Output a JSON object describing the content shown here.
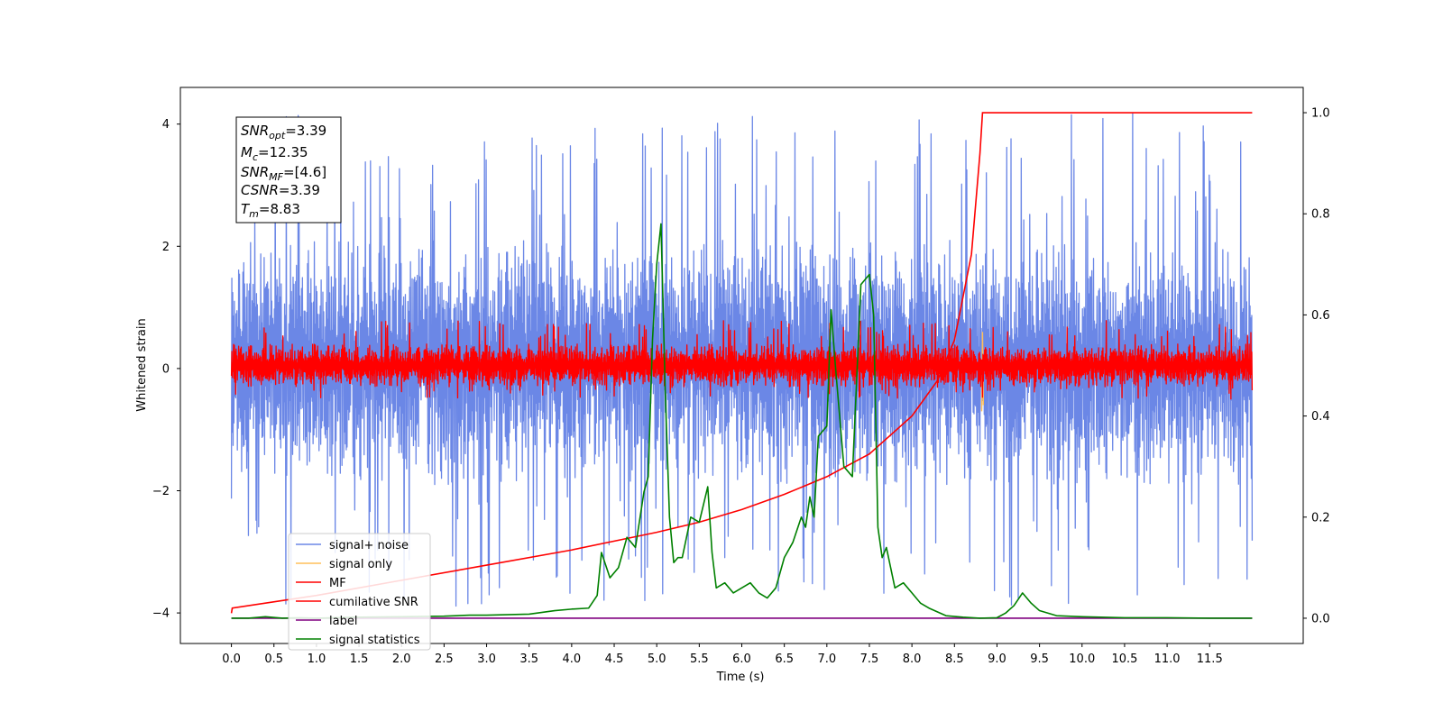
{
  "chart_data": {
    "type": "line",
    "xlabel": "Time (s)",
    "ylabel": "Whitened strain",
    "xlim": [
      -0.6,
      12.6
    ],
    "ylim": [
      -4.5,
      4.6
    ],
    "y2lim": [
      -0.05,
      1.05
    ],
    "xticks": [
      "0.0",
      "0.5",
      "1.0",
      "1.5",
      "2.0",
      "2.5",
      "3.0",
      "3.5",
      "4.0",
      "4.5",
      "5.0",
      "5.5",
      "6.0",
      "6.5",
      "7.0",
      "7.5",
      "8.0",
      "8.5",
      "9.0",
      "9.5",
      "10.0",
      "10.5",
      "11.0",
      "11.5"
    ],
    "yticks": [
      "4",
      "2",
      "0",
      "−2",
      "−4"
    ],
    "y2ticks": [
      "1.0",
      "0.8",
      "0.6",
      "0.4",
      "0.2",
      "0.0"
    ],
    "legend_position": "lower-left",
    "series": [
      {
        "name": "signal+ noise",
        "color": "#6b87e6",
        "x_range": [
          0,
          12
        ],
        "band": [
          -1.9,
          2.1
        ],
        "spike_range": [
          -3.9,
          4.2
        ]
      },
      {
        "name": "signal only",
        "color": "#ffbf5a",
        "x": [
          8.82,
          8.83,
          8.84
        ],
        "values": [
          -0.7,
          0.6,
          -0.6
        ]
      },
      {
        "name": "MF",
        "color": "#ff0000",
        "x_range": [
          0,
          12
        ],
        "band": [
          -0.3,
          0.4
        ],
        "spike_range": [
          -0.5,
          0.8
        ]
      },
      {
        "name": "cumilative SNR",
        "color": "#ff0000",
        "axis": "right",
        "x": [
          0.0,
          0.01,
          1.0,
          2.0,
          3.0,
          4.0,
          5.0,
          5.5,
          6.0,
          6.5,
          7.0,
          7.5,
          8.0,
          8.3,
          8.5,
          8.7,
          8.8,
          8.83,
          9.0,
          10.0,
          11.0,
          12.0
        ],
        "values": [
          0.01,
          0.02,
          0.045,
          0.075,
          0.105,
          0.135,
          0.17,
          0.19,
          0.215,
          0.245,
          0.28,
          0.325,
          0.4,
          0.47,
          0.55,
          0.72,
          0.92,
          1.0,
          1.0,
          1.0,
          1.0,
          1.0
        ]
      },
      {
        "name": "label",
        "color": "#800080",
        "axis": "right",
        "x": [
          0.0,
          12.0
        ],
        "values": [
          0.0,
          0.0
        ]
      },
      {
        "name": "signal statistics",
        "color": "#008000",
        "axis": "right",
        "x": [
          0.0,
          0.2,
          0.4,
          0.6,
          0.8,
          1.0,
          1.5,
          2.0,
          2.5,
          2.8,
          3.0,
          3.5,
          3.8,
          4.0,
          4.2,
          4.3,
          4.35,
          4.45,
          4.55,
          4.65,
          4.75,
          4.85,
          4.9,
          4.95,
          5.0,
          5.05,
          5.1,
          5.15,
          5.2,
          5.25,
          5.3,
          5.4,
          5.5,
          5.6,
          5.65,
          5.7,
          5.8,
          5.9,
          6.0,
          6.1,
          6.2,
          6.3,
          6.4,
          6.5,
          6.6,
          6.7,
          6.75,
          6.8,
          6.85,
          6.9,
          7.0,
          7.05,
          7.1,
          7.2,
          7.3,
          7.4,
          7.5,
          7.55,
          7.6,
          7.65,
          7.7,
          7.8,
          7.9,
          8.0,
          8.1,
          8.2,
          8.4,
          8.6,
          8.8,
          9.0,
          9.1,
          9.2,
          9.3,
          9.4,
          9.5,
          9.7,
          10.0,
          10.5,
          11.0,
          11.5,
          12.0
        ],
        "values": [
          0.0,
          0.0,
          0.003,
          0.0,
          0.001,
          0.0,
          0.002,
          0.003,
          0.004,
          0.006,
          0.006,
          0.008,
          0.015,
          0.018,
          0.02,
          0.045,
          0.13,
          0.08,
          0.1,
          0.16,
          0.14,
          0.25,
          0.28,
          0.55,
          0.7,
          0.78,
          0.45,
          0.2,
          0.11,
          0.12,
          0.12,
          0.2,
          0.19,
          0.26,
          0.13,
          0.06,
          0.07,
          0.05,
          0.06,
          0.07,
          0.05,
          0.04,
          0.06,
          0.12,
          0.15,
          0.2,
          0.18,
          0.24,
          0.2,
          0.36,
          0.38,
          0.61,
          0.5,
          0.3,
          0.28,
          0.66,
          0.68,
          0.6,
          0.18,
          0.12,
          0.14,
          0.06,
          0.07,
          0.05,
          0.03,
          0.02,
          0.005,
          0.002,
          0.0,
          0.001,
          0.01,
          0.025,
          0.05,
          0.03,
          0.015,
          0.005,
          0.003,
          0.001,
          0.001,
          0.0,
          0.0
        ]
      }
    ]
  },
  "info_box": {
    "snr_opt": {
      "base": "SNR",
      "sub": "opt",
      "value": "=3.39"
    },
    "mc": {
      "base": "M",
      "sub": "c",
      "value": "=12.35"
    },
    "snr_mf": {
      "base": "SNR",
      "sub": "MF",
      "value": "=[4.6]"
    },
    "csnr": {
      "base": "CSNR",
      "value": "=3.39"
    },
    "tm": {
      "base": "T",
      "sub": "m",
      "value": "=8.83"
    }
  }
}
